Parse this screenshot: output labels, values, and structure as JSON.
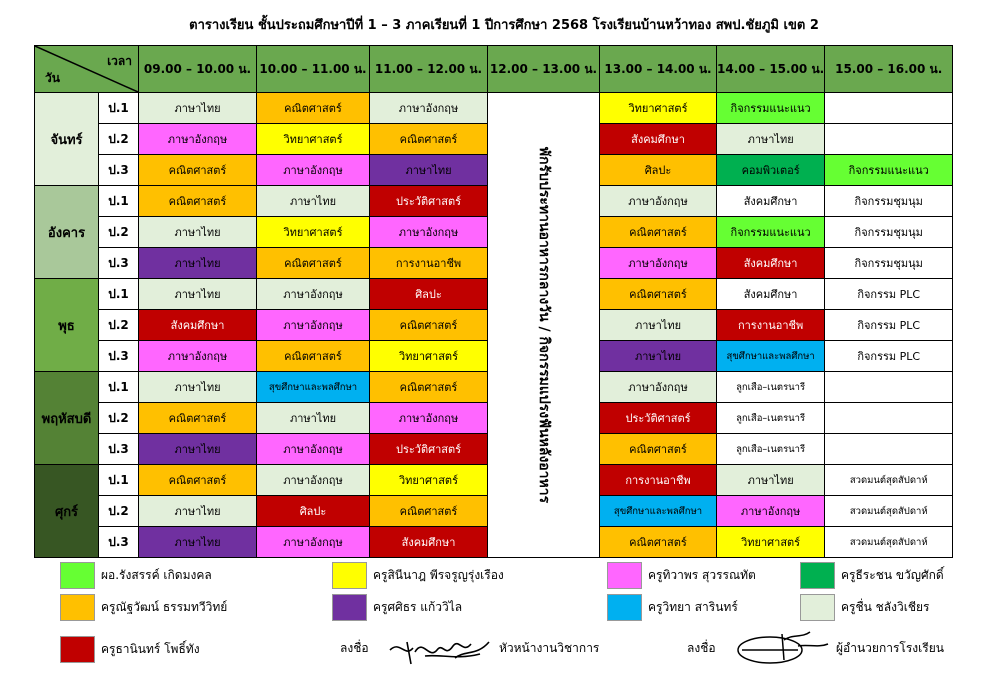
{
  "title": "ตารางเรียน  ชั้นประถมศึกษาปีที่ 1 – 3  ภาคเรียนที่ 1  ปีการศึกษา  2568  โรงเรียนบ้านหว้าทอง  สพป.ชัยภูมิ เขต 2",
  "header": {
    "time_label": "เวลา",
    "day_label": "วัน",
    "periods": [
      "09.00 – 10.00 น.",
      "10.00 – 11.00 น.",
      "11.00  –  12.00 น.",
      "12.00 – 13.00 น.",
      "13.00 – 14.00 น.",
      "14.00 – 15.00 น.",
      "15.00 – 16.00 น."
    ]
  },
  "lunch_text": "พักรับประทานอาหารกลางวัน / กิจกรรมแปรงฟันหลังอาหาร",
  "colors": {
    "green": "#66ff33",
    "yellow": "#ffff00",
    "pink": "#ff66ff",
    "darkgreen": "#00b050",
    "orange": "#ffc000",
    "purple": "#7030a0",
    "cyan": "#00b0f0",
    "light": "#e2efda",
    "red": "#c00000",
    "header": "#6aa84f",
    "day": "#385723"
  },
  "days": [
    {
      "name": "จันทร์",
      "color": "#e2efda",
      "rows": [
        {
          "cls": "ป.1",
          "cells": [
            [
              "ภาษาไทย",
              "light"
            ],
            [
              "คณิตศาสตร์",
              "orange"
            ],
            [
              "ภาษาอังกฤษ",
              "light"
            ],
            [
              "วิทยาศาสตร์",
              "yellow"
            ],
            [
              "กิจกรรมแนะแนว",
              "green"
            ],
            [
              "",
              "white"
            ]
          ]
        },
        {
          "cls": "ป.2",
          "cells": [
            [
              "ภาษาอังกฤษ",
              "pink"
            ],
            [
              "วิทยาศาสตร์",
              "yellow"
            ],
            [
              "คณิตศาสตร์",
              "orange"
            ],
            [
              "สังคมศึกษา",
              "red"
            ],
            [
              "ภาษาไทย",
              "light"
            ],
            [
              "",
              "white"
            ]
          ]
        },
        {
          "cls": "ป.3",
          "cells": [
            [
              "คณิตศาสตร์",
              "orange"
            ],
            [
              "ภาษาอังกฤษ",
              "pink"
            ],
            [
              "ภาษาไทย",
              "purple"
            ],
            [
              "ศิลปะ",
              "orange"
            ],
            [
              "คอมพิวเตอร์",
              "darkgreen"
            ],
            [
              "กิจกรรมแนะแนว",
              "green"
            ]
          ]
        }
      ]
    },
    {
      "name": "อังคาร",
      "color": "#a9c89a",
      "rows": [
        {
          "cls": "ป.1",
          "cells": [
            [
              "คณิตศาสตร์",
              "orange"
            ],
            [
              "ภาษาไทย",
              "light"
            ],
            [
              "ประวัติศาสตร์",
              "red"
            ],
            [
              "ภาษาอังกฤษ",
              "light"
            ],
            [
              "สังคมศึกษา",
              "white"
            ],
            [
              "กิจกรรมชุมนุม",
              "white"
            ]
          ]
        },
        {
          "cls": "ป.2",
          "cells": [
            [
              "ภาษาไทย",
              "light"
            ],
            [
              "วิทยาศาสตร์",
              "yellow"
            ],
            [
              "ภาษาอังกฤษ",
              "pink"
            ],
            [
              "คณิตศาสตร์",
              "orange"
            ],
            [
              "กิจกรรมแนะแนว",
              "green"
            ],
            [
              "กิจกรรมชุมนุม",
              "white"
            ]
          ]
        },
        {
          "cls": "ป.3",
          "cells": [
            [
              "ภาษาไทย",
              "purple"
            ],
            [
              "คณิตศาสตร์",
              "orange"
            ],
            [
              "การงานอาชีพ",
              "orange"
            ],
            [
              "ภาษาอังกฤษ",
              "pink"
            ],
            [
              "สังคมศึกษา",
              "red"
            ],
            [
              "กิจกรรมชุมนุม",
              "white"
            ]
          ]
        }
      ]
    },
    {
      "name": "พุธ",
      "color": "#70ad47",
      "rows": [
        {
          "cls": "ป.1",
          "cells": [
            [
              "ภาษาไทย",
              "light"
            ],
            [
              "ภาษาอังกฤษ",
              "light"
            ],
            [
              "ศิลปะ",
              "red"
            ],
            [
              "คณิตศาสตร์",
              "orange"
            ],
            [
              "สังคมศึกษา",
              "white"
            ],
            [
              "กิจกรรม PLC",
              "white"
            ]
          ]
        },
        {
          "cls": "ป.2",
          "cells": [
            [
              "สังคมศึกษา",
              "red"
            ],
            [
              "ภาษาอังกฤษ",
              "pink"
            ],
            [
              "คณิตศาสตร์",
              "orange"
            ],
            [
              "ภาษาไทย",
              "light"
            ],
            [
              "การงานอาชีพ",
              "red"
            ],
            [
              "กิจกรรม PLC",
              "white"
            ]
          ]
        },
        {
          "cls": "ป.3",
          "cells": [
            [
              "ภาษาอังกฤษ",
              "pink"
            ],
            [
              "คณิตศาสตร์",
              "orange"
            ],
            [
              "วิทยาศาสตร์",
              "yellow"
            ],
            [
              "ภาษาไทย",
              "purple"
            ],
            [
              "สุขศึกษาและพลศึกษา",
              "cyan"
            ],
            [
              "กิจกรรม PLC",
              "white"
            ]
          ]
        }
      ]
    },
    {
      "name": "พฤหัสบดี",
      "color": "#548235",
      "rows": [
        {
          "cls": "ป.1",
          "cells": [
            [
              "ภาษาไทย",
              "light"
            ],
            [
              "สุขศึกษาและพลศึกษา",
              "cyan"
            ],
            [
              "คณิตศาสตร์",
              "orange"
            ],
            [
              "ภาษาอังกฤษ",
              "light"
            ],
            [
              "ลูกเสือ–เนตรนารี",
              "white"
            ],
            [
              "",
              "white"
            ]
          ]
        },
        {
          "cls": "ป.2",
          "cells": [
            [
              "คณิตศาสตร์",
              "orange"
            ],
            [
              "ภาษาไทย",
              "light"
            ],
            [
              "ภาษาอังกฤษ",
              "pink"
            ],
            [
              "ประวัติศาสตร์",
              "red"
            ],
            [
              "ลูกเสือ–เนตรนารี",
              "white"
            ],
            [
              "",
              "white"
            ]
          ]
        },
        {
          "cls": "ป.3",
          "cells": [
            [
              "ภาษาไทย",
              "purple"
            ],
            [
              "ภาษาอังกฤษ",
              "pink"
            ],
            [
              "ประวัติศาสตร์",
              "red"
            ],
            [
              "คณิตศาสตร์",
              "orange"
            ],
            [
              "ลูกเสือ–เนตรนารี",
              "white"
            ],
            [
              "",
              "white"
            ]
          ]
        }
      ]
    },
    {
      "name": "ศุกร์",
      "color": "#375623",
      "rows": [
        {
          "cls": "ป.1",
          "cells": [
            [
              "คณิตศาสตร์",
              "orange"
            ],
            [
              "ภาษาอังกฤษ",
              "light"
            ],
            [
              "วิทยาศาสตร์",
              "yellow"
            ],
            [
              "การงานอาชีพ",
              "red"
            ],
            [
              "ภาษาไทย",
              "light"
            ],
            [
              "สวดมนต์สุดสัปดาห์",
              "white"
            ]
          ]
        },
        {
          "cls": "ป.2",
          "cells": [
            [
              "ภาษาไทย",
              "light"
            ],
            [
              "ศิลปะ",
              "red"
            ],
            [
              "คณิตศาสตร์",
              "orange"
            ],
            [
              "สุขศึกษาและพลศึกษา",
              "cyan"
            ],
            [
              "ภาษาอังกฤษ",
              "pink"
            ],
            [
              "สวดมนต์สุดสัปดาห์",
              "white"
            ]
          ]
        },
        {
          "cls": "ป.3",
          "cells": [
            [
              "ภาษาไทย",
              "purple"
            ],
            [
              "ภาษาอังกฤษ",
              "pink"
            ],
            [
              "สังคมศึกษา",
              "red"
            ],
            [
              "คณิตศาสตร์",
              "orange"
            ],
            [
              "วิทยาศาสตร์",
              "yellow"
            ],
            [
              "สวดมนต์สุดสัปดาห์",
              "white"
            ]
          ]
        }
      ]
    }
  ],
  "legend": [
    {
      "name": "ผอ.รังสรรค์  เกิดมงคล",
      "color": "#66ff33"
    },
    {
      "name": "ครูสินีนาฎ  พีรจรูญรุ่งเรือง",
      "color": "#ffff00"
    },
    {
      "name": "ครูทิวาพร  สุวรรณทัต",
      "color": "#ff66ff"
    },
    {
      "name": "ครูธีระชน  ขวัญศักดิ์",
      "color": "#00b050"
    },
    {
      "name": "ครูณัฐวัฒน์  ธรรมทวีวิทย์",
      "color": "#ffc000"
    },
    {
      "name": "ครูศศิธร  แก้ววิไล",
      "color": "#7030a0"
    },
    {
      "name": "ครูวิทยา  สารินทร์",
      "color": "#00b0f0"
    },
    {
      "name": "ครูชื่น  ชลังวิเชียร",
      "color": "#e2efda"
    },
    {
      "name": "ครูธานินทร์  โพธิ์ทัง",
      "color": "#c00000"
    }
  ],
  "signatures": {
    "sign_label_1": "ลงชื่อ",
    "role_1": "หัวหน้างานวิชาการ",
    "sign_label_2": "ลงชื่อ",
    "role_2": "ผู้อำนวยการโรงเรียน"
  }
}
